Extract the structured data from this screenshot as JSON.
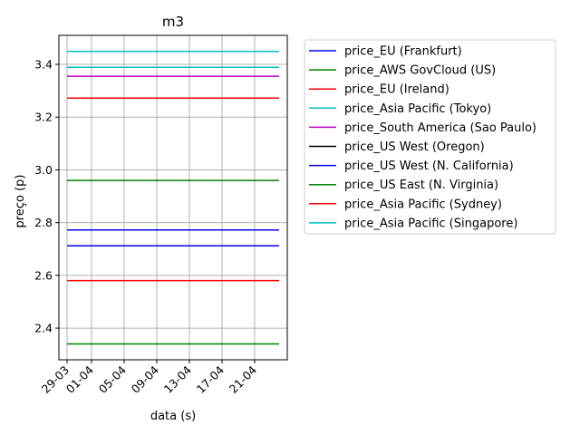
{
  "chart_data": {
    "type": "line",
    "title": "m3",
    "xlabel": "data (s)",
    "ylabel": "preço (p)",
    "x_start": "2017-03-29",
    "x_end": "2017-04-24",
    "xlim": [
      "2017-03-28",
      "2017-04-25"
    ],
    "ylim": [
      2.28,
      3.51
    ],
    "x_ticks": [
      {
        "date": "2017-03-29",
        "label": "29-03"
      },
      {
        "date": "2017-04-01",
        "label": "01-04"
      },
      {
        "date": "2017-04-05",
        "label": "05-04"
      },
      {
        "date": "2017-04-09",
        "label": "09-04"
      },
      {
        "date": "2017-04-13",
        "label": "13-04"
      },
      {
        "date": "2017-04-17",
        "label": "17-04"
      },
      {
        "date": "2017-04-21",
        "label": "21-04"
      }
    ],
    "y_ticks": [
      "2.4",
      "2.6",
      "2.8",
      "3.0",
      "3.2",
      "3.4"
    ],
    "grid": true,
    "legend_position": "outside-right",
    "series": [
      {
        "name": "price_EU (Frankfurt)",
        "value": 2.772,
        "color": "#0000ff"
      },
      {
        "name": "price_AWS GovCloud (US)",
        "value": 2.96,
        "color": "#008000"
      },
      {
        "name": "price_EU (Ireland)",
        "value": 3.272,
        "color": "#ff0000"
      },
      {
        "name": "price_Asia Pacific (Tokyo)",
        "value": 3.449,
        "color": "#00bfbf"
      },
      {
        "name": "price_South America (Sao Paulo)",
        "value": 3.355,
        "color": "#bf00bf"
      },
      {
        "name": "price_US West (Oregon)",
        "value": 2.712,
        "color": "#000000"
      },
      {
        "name": "price_US West (N. California)",
        "value": 2.712,
        "color": "#0000ff"
      },
      {
        "name": "price_US East (N. Virginia)",
        "value": 2.34,
        "color": "#008000"
      },
      {
        "name": "price_Asia Pacific (Sydney)",
        "value": 2.58,
        "color": "#ff0000"
      },
      {
        "name": "price_Asia Pacific (Singapore)",
        "value": 3.389,
        "color": "#00bfbf"
      }
    ]
  }
}
